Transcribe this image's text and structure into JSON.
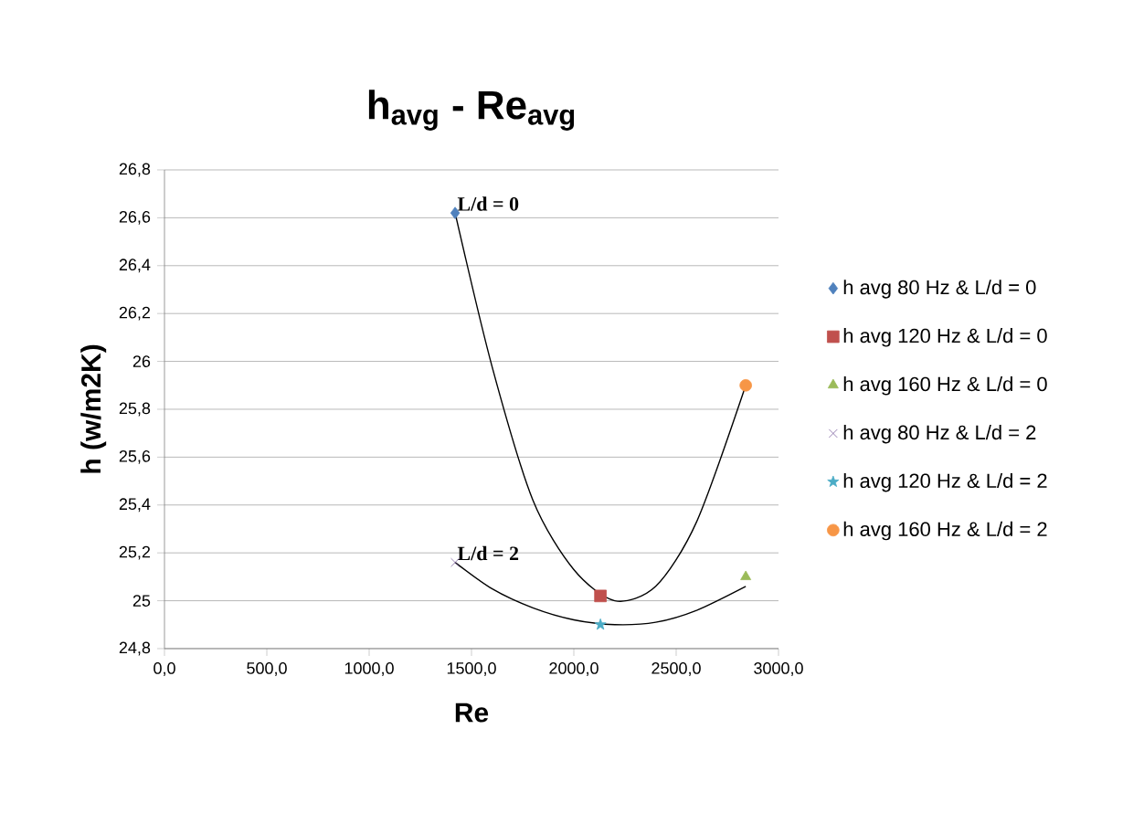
{
  "chart_data": {
    "type": "scatter",
    "title": "h$_{avg}$ - Re$_{avg}$",
    "xlabel": "Re",
    "ylabel": "h (w/m2K)",
    "xlim": [
      0,
      3000
    ],
    "ylim": [
      24.8,
      26.8
    ],
    "xticks": [
      {
        "value": 0,
        "label": "0,0"
      },
      {
        "value": 500,
        "label": "500,0"
      },
      {
        "value": 1000,
        "label": "1000,0"
      },
      {
        "value": 1500,
        "label": "1500,0"
      },
      {
        "value": 2000,
        "label": "2000,0"
      },
      {
        "value": 2500,
        "label": "2500,0"
      },
      {
        "value": 3000,
        "label": "3000,0"
      }
    ],
    "yticks": [
      {
        "value": 24.8,
        "label": "24,8"
      },
      25,
      {
        "value": 25.2,
        "label": "25,2"
      },
      {
        "value": 25.4,
        "label": "25,4"
      },
      {
        "value": 25.6,
        "label": "25,6"
      },
      {
        "value": 25.8,
        "label": "25,8"
      },
      26,
      {
        "value": 26.2,
        "label": "26,2"
      },
      {
        "value": 26.4,
        "label": "26,4"
      },
      {
        "value": 26.6,
        "label": "26,6"
      },
      {
        "value": 26.8,
        "label": "26,8"
      }
    ],
    "grid": "y",
    "legend": "right",
    "series": [
      {
        "name": "h avg 80 Hz & L/d = 0",
        "color": "#4f81bd",
        "marker": "diamond",
        "x": [
          1420
        ],
        "values": [
          26.62
        ]
      },
      {
        "name": "h avg 120 Hz & L/d = 0",
        "color": "#c0504d",
        "marker": "square",
        "x": [
          2130
        ],
        "values": [
          25.02
        ]
      },
      {
        "name": "h avg 160 Hz & L/d = 0",
        "color": "#9bbb59",
        "marker": "triangle",
        "x": [
          2840
        ],
        "values": [
          25.1
        ]
      },
      {
        "name": "h avg 80 Hz & L/d = 2",
        "color": "#8064a2",
        "marker": "cross",
        "x": [
          1420
        ],
        "values": [
          25.16
        ]
      },
      {
        "name": "h avg 120 Hz & L/d = 2",
        "color": "#4bacc6",
        "marker": "star",
        "x": [
          2130
        ],
        "values": [
          24.9
        ]
      },
      {
        "name": "h avg 160 Hz & L/d = 2",
        "color": "#f79646",
        "marker": "circle",
        "x": [
          2840
        ],
        "values": [
          25.9
        ]
      },
      {
        "type": "line",
        "color": "#000000",
        "marker": "none",
        "x": [
          1420,
          1600,
          1800,
          2000,
          2200,
          2400,
          2600,
          2840
        ],
        "values": [
          26.62,
          25.98,
          25.42,
          25.13,
          25.0,
          25.06,
          25.33,
          25.9
        ]
      },
      {
        "type": "line",
        "color": "#000000",
        "marker": "none",
        "x": [
          1420,
          1600,
          1800,
          2000,
          2200,
          2400,
          2600,
          2840
        ],
        "values": [
          25.16,
          25.05,
          24.97,
          24.92,
          24.9,
          24.91,
          24.96,
          25.06
        ]
      }
    ],
    "annotations": [
      {
        "text": "L/d = 0",
        "x": 1420,
        "y": 26.62
      },
      {
        "text": "L/d = 2",
        "x": 1420,
        "y": 25.16
      }
    ]
  }
}
